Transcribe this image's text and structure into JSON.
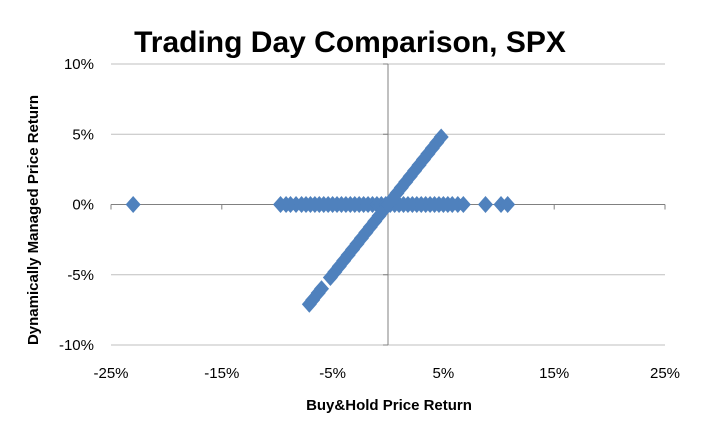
{
  "chart_data": {
    "type": "scatter",
    "title": "Trading Day Comparison, SPX",
    "xlabel": "Buy&Hold Price Return",
    "ylabel": "Dynamically Managed Price Return",
    "xlim": [
      -0.25,
      0.25
    ],
    "ylim": [
      -0.1,
      0.1
    ],
    "x_ticks": [
      -0.25,
      -0.15,
      -0.05,
      0.05,
      0.15,
      0.25
    ],
    "x_tick_labels": [
      "-25%",
      "-15%",
      "-5%",
      "5%",
      "15%",
      "25%"
    ],
    "y_ticks": [
      -0.1,
      -0.05,
      0.0,
      0.05,
      0.1
    ],
    "y_tick_labels": [
      "-10%",
      "-5%",
      "0%",
      "5%",
      "10%"
    ],
    "grid": "horizontal",
    "marker_color": "#4f81bd",
    "marker_shape": "diamond",
    "series": [
      {
        "x": [
          -0.23,
          -0.097,
          -0.092,
          -0.088,
          -0.083,
          -0.078,
          -0.074,
          -0.07,
          -0.066,
          -0.062,
          -0.058,
          -0.054,
          -0.05,
          -0.046,
          -0.042,
          -0.038,
          -0.034,
          -0.03,
          -0.026,
          -0.022,
          -0.018,
          -0.014,
          -0.01,
          -0.006,
          -0.002,
          0.002,
          0.006,
          0.01,
          0.014,
          0.018,
          0.022,
          0.026,
          0.03,
          0.034,
          0.038,
          0.042,
          0.046,
          0.05,
          0.054,
          0.058,
          0.063,
          0.068,
          0.088,
          0.102,
          0.108,
          -0.071,
          -0.068,
          -0.063,
          -0.06,
          -0.052,
          -0.048,
          -0.044,
          -0.04,
          -0.036,
          -0.032,
          -0.028,
          -0.024,
          -0.02,
          -0.016,
          -0.012,
          -0.008,
          -0.004,
          0.0,
          0.004,
          0.008,
          0.012,
          0.016,
          0.02,
          0.024,
          0.028,
          0.032,
          0.036,
          0.04,
          0.044,
          0.048
        ],
        "y": [
          0.0,
          0.0,
          0.0,
          0.0,
          0.0,
          0.0,
          0.0,
          0.0,
          0.0,
          0.0,
          0.0,
          0.0,
          0.0,
          0.0,
          0.0,
          0.0,
          0.0,
          0.0,
          0.0,
          0.0,
          0.0,
          0.0,
          0.0,
          0.0,
          0.0,
          0.0,
          0.0,
          0.0,
          0.0,
          0.0,
          0.0,
          0.0,
          0.0,
          0.0,
          0.0,
          0.0,
          0.0,
          0.0,
          0.0,
          0.0,
          0.0,
          0.0,
          0.0,
          0.0,
          0.0,
          -0.071,
          -0.068,
          -0.063,
          -0.06,
          -0.052,
          -0.048,
          -0.044,
          -0.04,
          -0.036,
          -0.032,
          -0.028,
          -0.024,
          -0.02,
          -0.016,
          -0.012,
          -0.008,
          -0.004,
          0.0,
          0.004,
          0.008,
          0.012,
          0.016,
          0.02,
          0.024,
          0.028,
          0.032,
          0.036,
          0.04,
          0.044,
          0.048
        ]
      }
    ]
  }
}
